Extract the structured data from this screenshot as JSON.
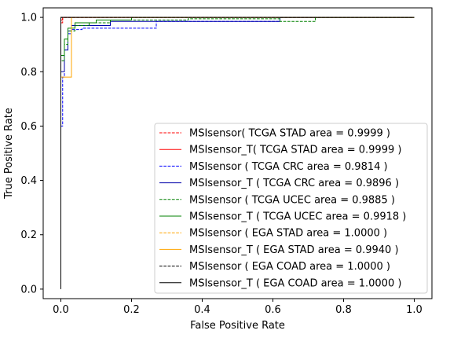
{
  "chart_data": {
    "type": "line",
    "xlabel": "False Positive Rate",
    "ylabel": "True Positive Rate",
    "xlim": [
      -0.05,
      1.05
    ],
    "ylim": [
      -0.035,
      1.035
    ],
    "xticks": [
      0.0,
      0.2,
      0.4,
      0.6,
      0.8,
      1.0
    ],
    "yticks": [
      0.0,
      0.2,
      0.4,
      0.6,
      0.8,
      1.0
    ],
    "xtick_labels": [
      "0.0",
      "0.2",
      "0.4",
      "0.6",
      "0.8",
      "1.0"
    ],
    "ytick_labels": [
      "0.0",
      "0.2",
      "0.4",
      "0.6",
      "0.8",
      "1.0"
    ],
    "grid": false,
    "legend_position": "lower-right",
    "series": [
      {
        "name": "MSIsensor( TCGA STAD area = 0.9999 )",
        "color": "#ff0000",
        "dash": "dashed",
        "x": [
          0,
          0,
          0.005,
          0.005,
          1
        ],
        "y": [
          0,
          0.98,
          0.98,
          1,
          1
        ]
      },
      {
        "name": "MSIsensor_T( TCGA STAD area = 0.9999 )",
        "color": "#ff0000",
        "dash": "solid",
        "x": [
          0,
          0,
          0.005,
          0.005,
          1
        ],
        "y": [
          0,
          0.99,
          0.99,
          1,
          1
        ]
      },
      {
        "name": "MSIsensor ( TCGA CRC area = 0.9814 )",
        "color": "#0000ff",
        "dash": "dashed",
        "x": [
          0,
          0,
          0.005,
          0.005,
          0.01,
          0.01,
          0.02,
          0.02,
          0.03,
          0.03,
          0.06,
          0.06,
          0.27,
          0.27,
          0.62,
          0.62,
          1
        ],
        "y": [
          0,
          0.6,
          0.6,
          0.78,
          0.78,
          0.88,
          0.88,
          0.94,
          0.94,
          0.955,
          0.955,
          0.96,
          0.96,
          0.985,
          0.985,
          1,
          1
        ]
      },
      {
        "name": "MSIsensor_T ( TCGA CRC area = 0.9896 )",
        "color": "#0000aa",
        "dash": "solid",
        "x": [
          0,
          0,
          0.01,
          0.01,
          0.02,
          0.02,
          0.03,
          0.03,
          0.14,
          0.14,
          0.62,
          0.62,
          1
        ],
        "y": [
          0,
          0.8,
          0.8,
          0.88,
          0.88,
          0.95,
          0.95,
          0.97,
          0.97,
          0.985,
          0.985,
          1,
          1
        ]
      },
      {
        "name": "MSIsensor ( TCGA UCEC area = 0.9885 )",
        "color": "#008000",
        "dash": "dashed",
        "x": [
          0,
          0,
          0.01,
          0.01,
          0.02,
          0.02,
          0.04,
          0.04,
          0.08,
          0.08,
          0.14,
          0.14,
          0.36,
          0.36,
          0.62,
          0.62,
          0.72,
          0.72,
          1
        ],
        "y": [
          0,
          0.84,
          0.84,
          0.9,
          0.9,
          0.95,
          0.95,
          0.97,
          0.97,
          0.98,
          0.98,
          0.99,
          0.99,
          0.995,
          0.995,
          0.985,
          0.985,
          1,
          1
        ]
      },
      {
        "name": "MSIsensor_T ( TCGA UCEC area = 0.9918 )",
        "color": "#008000",
        "dash": "solid",
        "x": [
          0,
          0,
          0.01,
          0.01,
          0.02,
          0.02,
          0.04,
          0.04,
          0.1,
          0.1,
          0.2,
          0.2,
          1
        ],
        "y": [
          0,
          0.86,
          0.86,
          0.92,
          0.92,
          0.96,
          0.96,
          0.98,
          0.98,
          0.99,
          0.99,
          1,
          1
        ]
      },
      {
        "name": "MSIsensor ( EGA STAD area = 1.0000 )",
        "color": "#ffa500",
        "dash": "dashed",
        "x": [
          0,
          0,
          1
        ],
        "y": [
          0,
          1,
          1
        ]
      },
      {
        "name": "MSIsensor_T ( EGA STAD area = 0.9940 )",
        "color": "#ffa500",
        "dash": "solid",
        "x": [
          0,
          0,
          0.03,
          0.03,
          1
        ],
        "y": [
          0,
          0.78,
          0.78,
          1,
          1
        ]
      },
      {
        "name": "MSIsensor ( EGA COAD area = 1.0000 )",
        "color": "#000000",
        "dash": "dashed",
        "x": [
          0,
          0,
          1
        ],
        "y": [
          0,
          1,
          1
        ]
      },
      {
        "name": "MSIsensor_T ( EGA COAD area = 1.0000 )",
        "color": "#000000",
        "dash": "solid",
        "x": [
          0,
          0,
          1
        ],
        "y": [
          0,
          1,
          1
        ]
      }
    ]
  }
}
